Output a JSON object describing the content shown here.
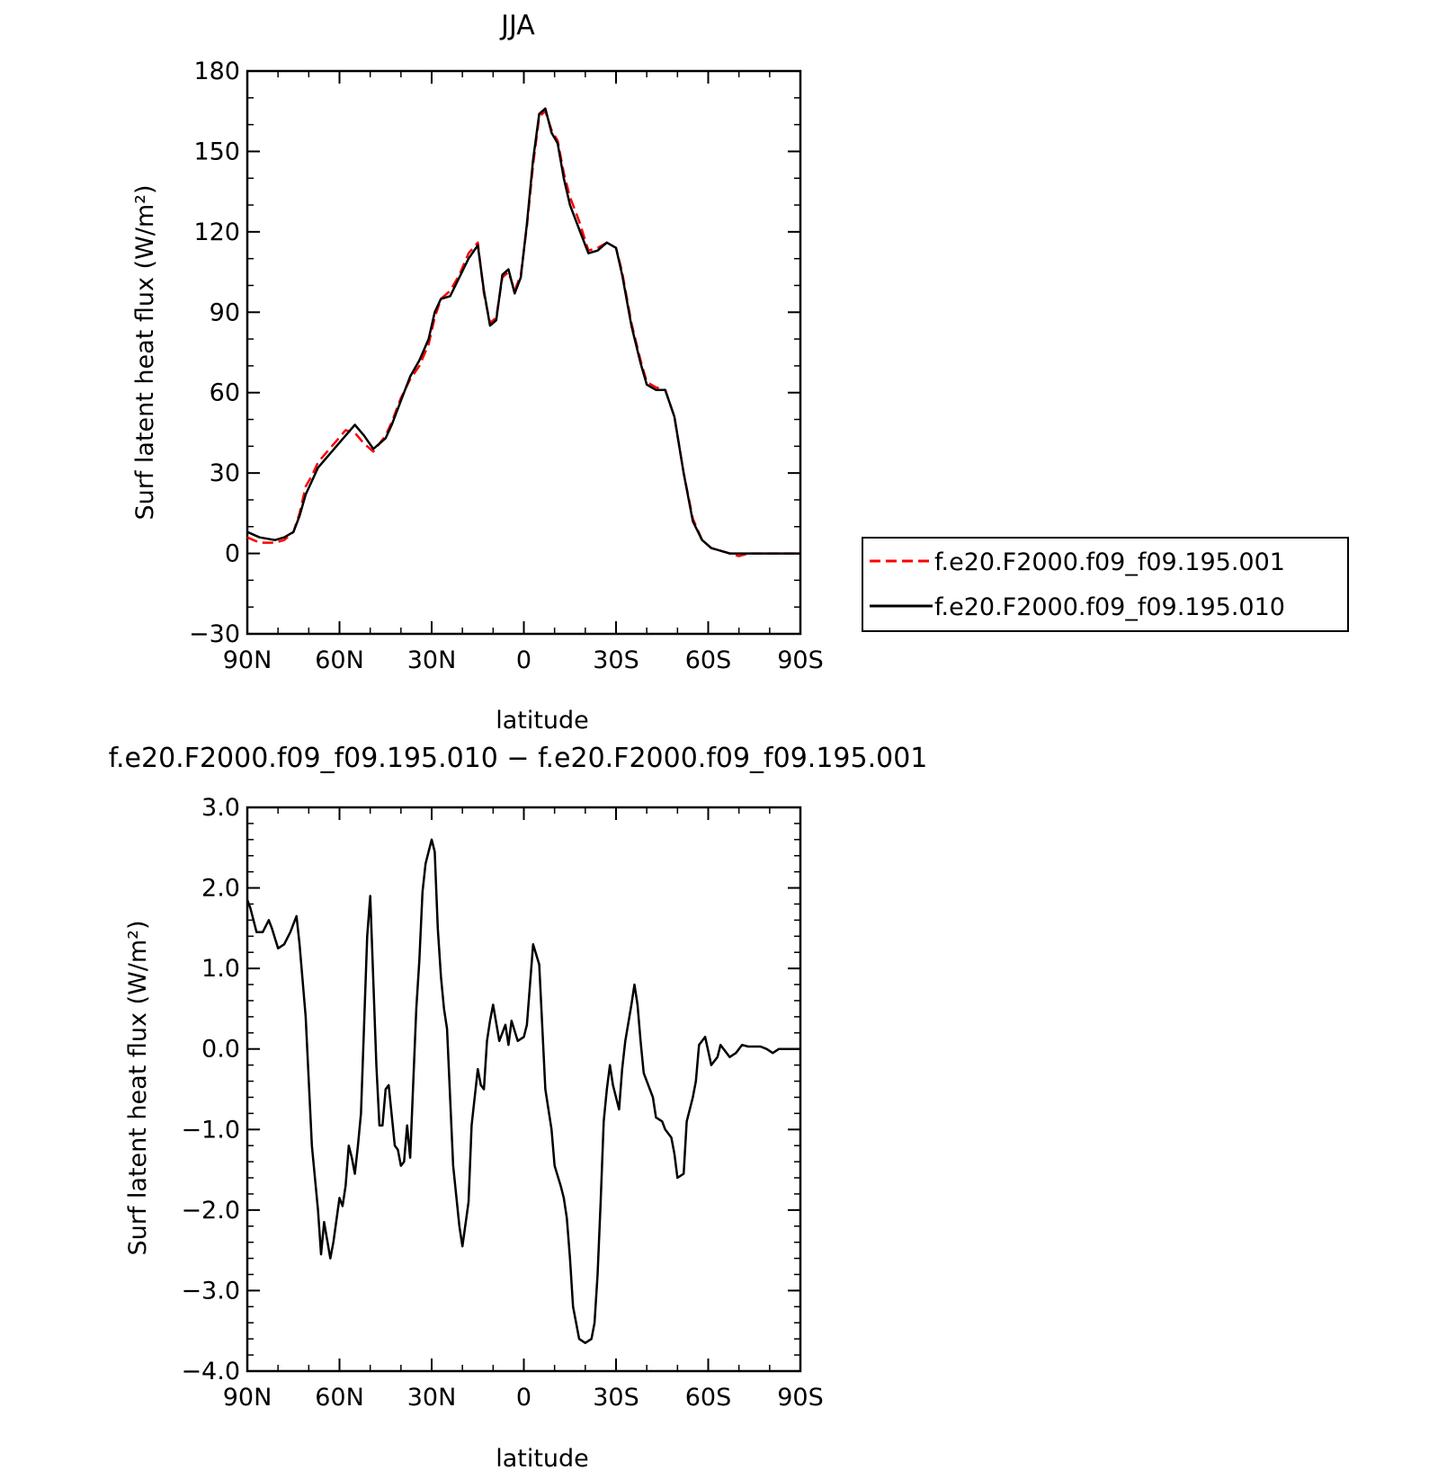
{
  "chart_data": [
    {
      "type": "line",
      "title": "JJA",
      "xlabel": "latitude",
      "ylabel": "Surf latent heat flux (W/m²)",
      "xlim": [
        90,
        -90
      ],
      "ylim": [
        -30,
        180
      ],
      "xticks": [
        90,
        60,
        30,
        0,
        -30,
        -60,
        -90
      ],
      "xtick_labels": [
        "90N",
        "60N",
        "30N",
        "0",
        "30S",
        "60S",
        "90S"
      ],
      "yticks": [
        -30,
        0,
        30,
        60,
        90,
        120,
        150,
        180
      ],
      "ytick_labels": [
        "−30",
        "0",
        "30",
        "60",
        "90",
        "120",
        "150",
        "180"
      ],
      "grid": false,
      "legend": "outside-right",
      "series": [
        {
          "name": "f.e20.F2000.f09_f09.195.001",
          "color": "#ff0000",
          "dash": "dashed",
          "x": [
            90,
            86,
            81,
            78,
            75,
            73,
            71,
            69,
            67,
            64,
            61,
            58,
            55,
            52,
            49,
            47,
            45,
            43,
            40,
            37,
            34,
            31,
            29,
            27,
            24,
            21,
            18,
            15,
            13,
            11,
            9,
            7,
            5,
            3,
            1,
            -1,
            -3,
            -5,
            -7,
            -9,
            -11,
            -13,
            -15,
            -18,
            -21,
            -24,
            -27,
            -30,
            -32,
            -35,
            -38,
            -40,
            -43,
            -46,
            -49,
            -52,
            -55,
            -58,
            -61,
            -64,
            -67,
            -70,
            -73,
            -76,
            -79,
            -82,
            -85,
            -88,
            -90
          ],
          "y": [
            6,
            4,
            4,
            5,
            8,
            15,
            25,
            29,
            34,
            38,
            42,
            46,
            45,
            41,
            38,
            41,
            44,
            49,
            58,
            65,
            70,
            78,
            88,
            95,
            98,
            104,
            112,
            116,
            97,
            86,
            88,
            103,
            105,
            98,
            104,
            122,
            145,
            163,
            165,
            158,
            154,
            142,
            133,
            124,
            113,
            114,
            116,
            114,
            105,
            86,
            72,
            64,
            62,
            61,
            51,
            30,
            13,
            5,
            2,
            1,
            0,
            -1,
            0,
            0,
            0,
            0,
            0,
            0,
            0
          ]
        },
        {
          "name": "f.e20.F2000.f09_f09.195.010",
          "color": "#000000",
          "dash": "solid",
          "x": [
            90,
            86,
            81,
            78,
            75,
            73,
            71,
            69,
            67,
            64,
            61,
            58,
            55,
            52,
            49,
            47,
            45,
            43,
            40,
            37,
            34,
            31,
            29,
            27,
            24,
            21,
            18,
            15,
            13,
            11,
            9,
            7,
            5,
            3,
            1,
            -1,
            -3,
            -5,
            -7,
            -9,
            -11,
            -13,
            -15,
            -18,
            -21,
            -24,
            -27,
            -30,
            -32,
            -35,
            -38,
            -40,
            -43,
            -46,
            -49,
            -52,
            -55,
            -58,
            -61,
            -64,
            -67,
            -70,
            -73,
            -76,
            -79,
            -82,
            -85,
            -88,
            -90
          ],
          "y": [
            8,
            6,
            5,
            6,
            8,
            14,
            22,
            27,
            32,
            36,
            40,
            44,
            48,
            44,
            39,
            41,
            43,
            48,
            57,
            66,
            72,
            80,
            90,
            95,
            96,
            103,
            110,
            115,
            98,
            85,
            87,
            104,
            106,
            97,
            103,
            123,
            147,
            164,
            166,
            157,
            153,
            140,
            130,
            121,
            112,
            113,
            116,
            114,
            104,
            85,
            71,
            63,
            61,
            61,
            51,
            30,
            12,
            5,
            2,
            1,
            0,
            0,
            0,
            0,
            0,
            0,
            0,
            0,
            0
          ]
        }
      ]
    },
    {
      "type": "line",
      "title": "f.e20.F2000.f09_f09.195.010 − f.e20.F2000.f09_f09.195.001",
      "xlabel": "latitude",
      "ylabel": "Surf latent heat flux (W/m²)",
      "xlim": [
        90,
        -90
      ],
      "ylim": [
        -4.0,
        3.0
      ],
      "xticks": [
        90,
        60,
        30,
        0,
        -30,
        -60,
        -90
      ],
      "xtick_labels": [
        "90N",
        "60N",
        "30N",
        "0",
        "30S",
        "60S",
        "90S"
      ],
      "yticks": [
        -4.0,
        -3.0,
        -2.0,
        -1.0,
        0.0,
        1.0,
        2.0,
        3.0
      ],
      "ytick_labels": [
        "−4.0",
        "−3.0",
        "−2.0",
        "−1.0",
        "0.0",
        "1.0",
        "2.0",
        "3.0"
      ],
      "grid": false,
      "series": [
        {
          "color": "#000000",
          "dash": "solid",
          "x": [
            90,
            89,
            87,
            85,
            83,
            82,
            80,
            78,
            76,
            74,
            73,
            71,
            69,
            67,
            66,
            65,
            63,
            62,
            60,
            59,
            58,
            57,
            56,
            55,
            54,
            53,
            51,
            50,
            48,
            47,
            46,
            45,
            44,
            42,
            41,
            40,
            39,
            38,
            37,
            35,
            34,
            33,
            32,
            30,
            29,
            28,
            27,
            26,
            25,
            23,
            21,
            20,
            18,
            17,
            15,
            14,
            13,
            12,
            11,
            10,
            8,
            6,
            5,
            4,
            2,
            0,
            -1,
            -3,
            -5,
            -7,
            -9,
            -10,
            -12,
            -13,
            -14,
            -15,
            -16,
            -18,
            -20,
            -22,
            -23,
            -24,
            -25,
            -26,
            -27,
            -28,
            -29,
            -31,
            -32,
            -33,
            -35,
            -36,
            -37,
            -38,
            -39,
            -41,
            -42,
            -43,
            -45,
            -46,
            -48,
            -49,
            -50,
            -52,
            -53,
            -55,
            -56,
            -57,
            -59,
            -61,
            -63,
            -64,
            -65,
            -67,
            -69,
            -71,
            -73,
            -75,
            -77,
            -79,
            -81,
            -83,
            -85,
            -87,
            -88,
            -90
          ],
          "y": [
            1.85,
            1.75,
            1.45,
            1.45,
            1.6,
            1.5,
            1.25,
            1.3,
            1.45,
            1.65,
            1.3,
            0.4,
            -1.2,
            -2.0,
            -2.55,
            -2.15,
            -2.6,
            -2.4,
            -1.85,
            -1.95,
            -1.7,
            -1.2,
            -1.35,
            -1.55,
            -1.2,
            -0.8,
            1.4,
            1.9,
            -0.2,
            -0.95,
            -0.95,
            -0.5,
            -0.45,
            -1.2,
            -1.25,
            -1.45,
            -1.4,
            -0.95,
            -1.35,
            0.5,
            1.1,
            1.95,
            2.3,
            2.6,
            2.45,
            1.5,
            0.9,
            0.5,
            0.25,
            -1.45,
            -2.2,
            -2.45,
            -1.9,
            -0.95,
            -0.25,
            -0.45,
            -0.5,
            0.1,
            0.35,
            0.55,
            0.1,
            0.3,
            0.05,
            0.35,
            0.1,
            0.15,
            0.3,
            1.3,
            1.05,
            -0.5,
            -1.0,
            -1.45,
            -1.7,
            -1.85,
            -2.1,
            -2.6,
            -3.2,
            -3.6,
            -3.65,
            -3.6,
            -3.4,
            -2.8,
            -1.9,
            -0.9,
            -0.5,
            -0.2,
            -0.45,
            -0.75,
            -0.25,
            0.1,
            0.55,
            0.8,
            0.55,
            0.1,
            -0.3,
            -0.5,
            -0.6,
            -0.85,
            -0.9,
            -1.0,
            -1.1,
            -1.3,
            -1.6,
            -1.55,
            -0.9,
            -0.6,
            -0.4,
            0.05,
            0.15,
            -0.2,
            -0.1,
            0.05,
            0.0,
            -0.1,
            -0.05,
            0.05,
            0.03,
            0.03,
            0.03,
            0.0,
            -0.05,
            0.0,
            0.0,
            0.0,
            0.0,
            0.0
          ]
        }
      ]
    }
  ]
}
